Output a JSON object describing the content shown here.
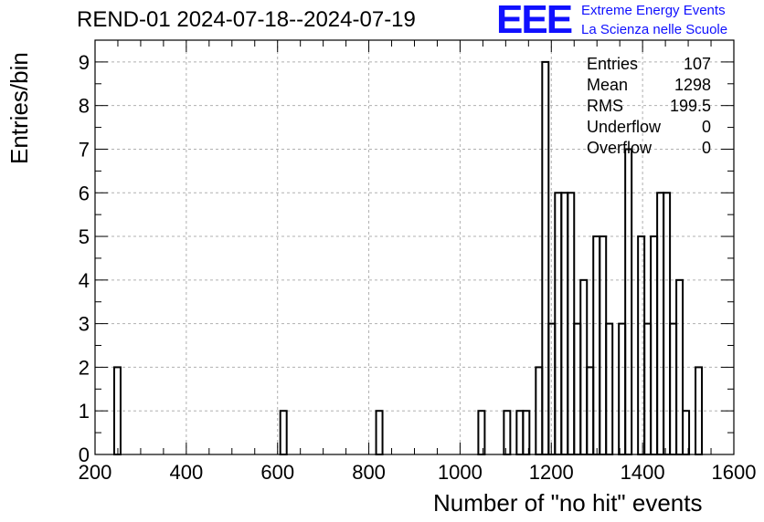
{
  "header": {
    "title": "REND-01 2024-07-18--2024-07-19"
  },
  "logo": {
    "text": "EEE",
    "line1": "Extreme Energy Events",
    "line2": "La Scienza nelle Scuole",
    "color": "#1010ff"
  },
  "stats": [
    {
      "label": "Entries",
      "value": "107"
    },
    {
      "label": "Mean",
      "value": "1298"
    },
    {
      "label": "RMS",
      "value": "199.5"
    },
    {
      "label": "Underflow",
      "value": "0"
    },
    {
      "label": "Overflow",
      "value": "0"
    }
  ],
  "chart_data": {
    "type": "bar",
    "title": "REND-01 2024-07-18--2024-07-19",
    "xlabel": "Number of \"no hit\" events",
    "ylabel": "Entries/bin",
    "xlim": [
      200,
      1600
    ],
    "ylim": [
      0,
      9.5
    ],
    "bin_width": 14,
    "xticks": [
      200,
      400,
      600,
      800,
      1000,
      1200,
      1400,
      1600
    ],
    "xtick_labels": [
      "200",
      "400",
      "600",
      "800",
      "1000",
      "1200",
      "1400",
      "1600"
    ],
    "yticks": [
      0,
      1,
      2,
      3,
      4,
      5,
      6,
      7,
      8,
      9
    ],
    "ytick_labels": [
      "0",
      "1",
      "2",
      "3",
      "4",
      "5",
      "6",
      "7",
      "8",
      "9"
    ],
    "grid": true,
    "bins": [
      {
        "x": 242,
        "count": 2
      },
      {
        "x": 606,
        "count": 1
      },
      {
        "x": 816,
        "count": 1
      },
      {
        "x": 1040,
        "count": 1
      },
      {
        "x": 1096,
        "count": 1
      },
      {
        "x": 1124,
        "count": 1
      },
      {
        "x": 1138,
        "count": 1
      },
      {
        "x": 1166,
        "count": 2
      },
      {
        "x": 1180,
        "count": 9
      },
      {
        "x": 1194,
        "count": 3
      },
      {
        "x": 1208,
        "count": 6
      },
      {
        "x": 1222,
        "count": 6
      },
      {
        "x": 1236,
        "count": 6
      },
      {
        "x": 1250,
        "count": 3
      },
      {
        "x": 1264,
        "count": 4
      },
      {
        "x": 1278,
        "count": 2
      },
      {
        "x": 1292,
        "count": 5
      },
      {
        "x": 1306,
        "count": 5
      },
      {
        "x": 1320,
        "count": 3
      },
      {
        "x": 1348,
        "count": 3
      },
      {
        "x": 1362,
        "count": 7
      },
      {
        "x": 1390,
        "count": 5
      },
      {
        "x": 1404,
        "count": 3
      },
      {
        "x": 1418,
        "count": 5
      },
      {
        "x": 1432,
        "count": 6
      },
      {
        "x": 1446,
        "count": 6
      },
      {
        "x": 1460,
        "count": 3
      },
      {
        "x": 1474,
        "count": 4
      },
      {
        "x": 1488,
        "count": 1
      },
      {
        "x": 1516,
        "count": 2
      }
    ]
  }
}
